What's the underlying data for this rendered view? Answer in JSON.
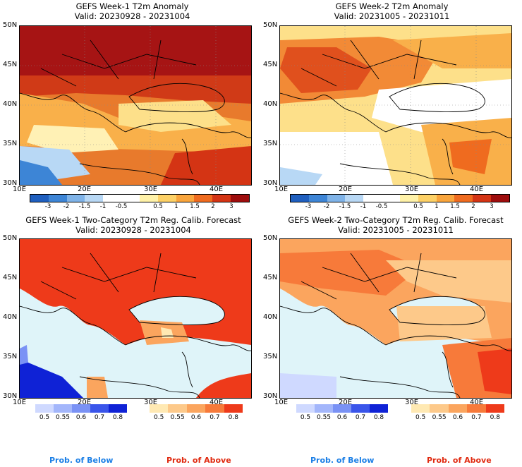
{
  "panels": [
    {
      "title1": "GEFS Week-1 T2m Anomaly",
      "title2": "Valid: 20230928 - 20231004"
    },
    {
      "title1": "GEFS Week-2 T2m Anomaly",
      "title2": "Valid: 20231005 - 20231011"
    },
    {
      "title1": "GEFS Week-1 Two-Category T2m Reg. Calib. Forecast",
      "title2": "Valid: 20230928 - 20231004"
    },
    {
      "title1": "GEFS Week-2 Two-Category T2m Reg. Calib. Forecast",
      "title2": "Valid: 20231005 - 20231011"
    }
  ],
  "lat_labels": [
    "50N",
    "45N",
    "40N",
    "35N",
    "30N"
  ],
  "lon_labels": [
    "10E",
    "20E",
    "30E",
    "40E"
  ],
  "anomaly_colorbar": {
    "colors": [
      "#1f5fbf",
      "#3d85d6",
      "#7fb3e8",
      "#b8d8f5",
      "#ffffff",
      "#ffffff",
      "#fff2a8",
      "#fdd166",
      "#f9a53c",
      "#ef6b1f",
      "#d43414",
      "#9e0d0d"
    ],
    "labels": [
      "-3",
      "-2",
      "-1.5",
      "-1",
      "-0.5",
      "0.5",
      "1",
      "1.5",
      "2",
      "3"
    ]
  },
  "prob_below": {
    "colors": [
      "#cfd9ff",
      "#a3b6fb",
      "#7a92f5",
      "#3a55ea",
      "#0f22d6"
    ],
    "labels": [
      "0.5",
      "0.55",
      "0.6",
      "0.7",
      "0.8"
    ]
  },
  "prob_above": {
    "colors": [
      "#ffe9b3",
      "#fdc98a",
      "#fba55e",
      "#f77a3a",
      "#ee3a1a"
    ],
    "labels": [
      "0.5",
      "0.55",
      "0.6",
      "0.7",
      "0.8"
    ]
  },
  "legend": {
    "below": "Prob. of Below",
    "above": "Prob. of Above",
    "below_color": "#1b7fe6",
    "above_color": "#e02a10"
  }
}
